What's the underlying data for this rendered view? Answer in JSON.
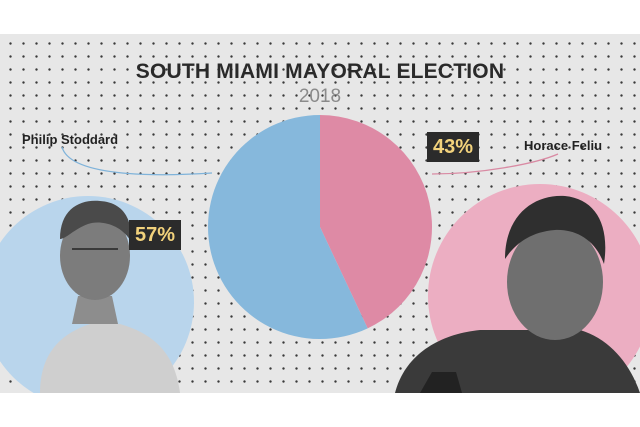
{
  "chart_data": {
    "type": "pie",
    "title": "SOUTH MIAMI MAYORAL ELECTION",
    "subtitle": "2018",
    "slices": [
      {
        "label": "Philip Stoddard",
        "value": 57,
        "display": "57%",
        "color": "#86b8dc"
      },
      {
        "label": "Horace Feliu",
        "value": 43,
        "display": "43%",
        "color": "#de8aa5"
      }
    ]
  },
  "colors": {
    "background": "#e7e7e7",
    "dots": "#3a3a3a",
    "badge_background": "#2b2b2b",
    "badge_text": "#f2d27c",
    "left_circle": "#b9d5ec",
    "right_circle": "#ecaec2"
  }
}
